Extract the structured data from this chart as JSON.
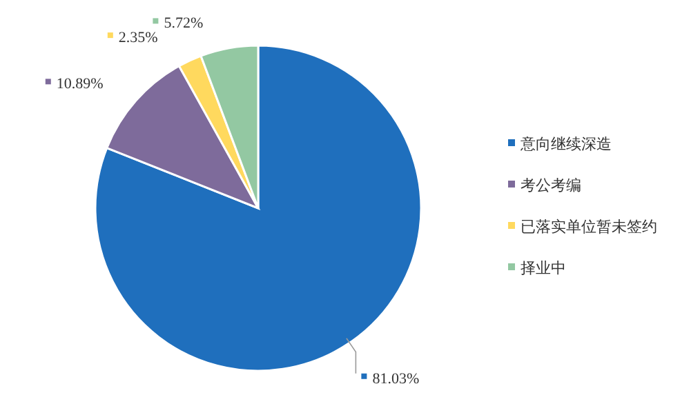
{
  "chart_data": {
    "type": "pie",
    "categories": [
      "意向继续深造",
      "考公考编",
      "已落实单位暂未签约",
      "择业中"
    ],
    "values": [
      81.03,
      10.89,
      2.35,
      5.72
    ],
    "value_labels": [
      "81.03%",
      "10.89%",
      "2.35%",
      "5.72%"
    ],
    "colors": [
      "#1f6fbd",
      "#7e6b9b",
      "#ffd95e",
      "#93c8a2"
    ],
    "legend": "right"
  }
}
